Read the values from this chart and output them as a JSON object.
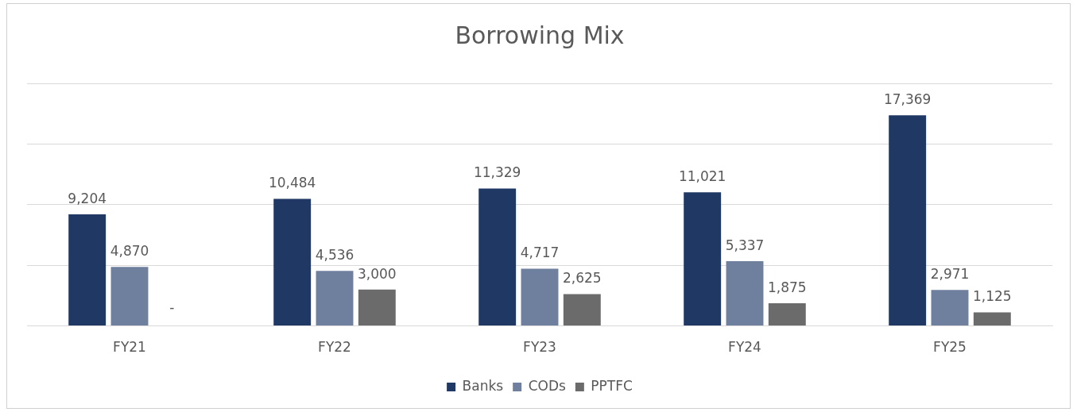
{
  "chart_data": {
    "type": "bar",
    "title": "Borrowing Mix",
    "categories": [
      "FY21",
      "FY22",
      "FY23",
      "FY24",
      "FY25"
    ],
    "series": [
      {
        "name": "Banks",
        "color": "#203864",
        "values": [
          9204,
          10484,
          11329,
          11021,
          17369
        ],
        "value_labels": [
          "9,204",
          "10,484",
          "11,329",
          "11,021",
          "17,369"
        ]
      },
      {
        "name": "CODs",
        "color": "#6f7f9e",
        "values": [
          4870,
          4536,
          4717,
          5337,
          2971
        ],
        "value_labels": [
          "4,870",
          "4,536",
          "4,717",
          "5,337",
          "2,971"
        ]
      },
      {
        "name": "PPTFC",
        "color": "#6b6b6b",
        "values": [
          null,
          3000,
          2625,
          1875,
          1125
        ],
        "value_labels": [
          "-",
          "3,000",
          "2,625",
          "1,875",
          "1,125"
        ]
      }
    ],
    "ylim": [
      0,
      20000
    ],
    "yticks": [
      {
        "value": 0,
        "label": null
      },
      {
        "value": 5000,
        "label": null
      },
      {
        "value": 10000,
        "label": null
      },
      {
        "value": 15000,
        "label": null
      },
      {
        "value": 20000,
        "label": null
      }
    ],
    "tick_labels": "x",
    "grid": "y",
    "legend": "bottom"
  }
}
